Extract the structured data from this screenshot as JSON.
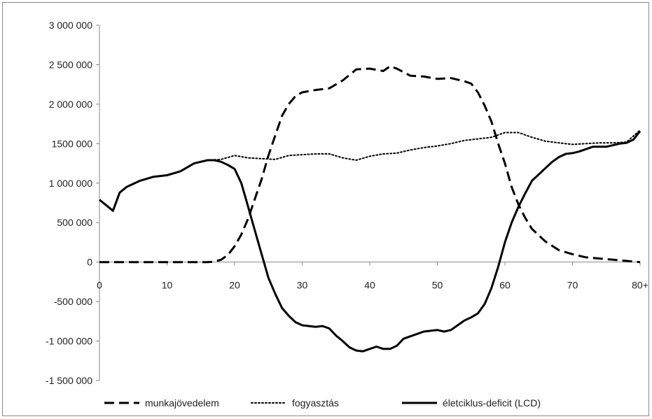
{
  "chart_data": {
    "type": "line",
    "title": "",
    "xlabel": "",
    "ylabel": "",
    "xlim": [
      0,
      80
    ],
    "ylim": [
      -1500000,
      3000000
    ],
    "x_ticks": [
      {
        "value": 0,
        "label": "0"
      },
      {
        "value": 10,
        "label": "10"
      },
      {
        "value": 20,
        "label": "20"
      },
      {
        "value": 30,
        "label": "30"
      },
      {
        "value": 40,
        "label": "40"
      },
      {
        "value": 50,
        "label": "50"
      },
      {
        "value": 60,
        "label": "60"
      },
      {
        "value": 70,
        "label": "70"
      },
      {
        "value": 80,
        "label": "80+"
      }
    ],
    "y_ticks": [
      {
        "value": 3000000,
        "label": "3 000 000"
      },
      {
        "value": 2500000,
        "label": "2 500 000"
      },
      {
        "value": 2000000,
        "label": "2 000 000"
      },
      {
        "value": 1500000,
        "label": "1500 000"
      },
      {
        "value": 1000000,
        "label": "1 000 000"
      },
      {
        "value": 500000,
        "label": "500 000"
      },
      {
        "value": 0,
        "label": "0"
      },
      {
        "value": -500000,
        "label": "-500 000"
      },
      {
        "value": -1000000,
        "label": "-1 000 000"
      },
      {
        "value": -1500000,
        "label": "-1 500 000"
      }
    ],
    "grid": false,
    "legend_position": "bottom",
    "series": [
      {
        "name": "munkajövedelem",
        "dash": "dashed",
        "color": "#000000",
        "x": [
          0,
          2,
          4,
          6,
          8,
          10,
          12,
          14,
          16,
          17,
          18,
          19,
          20,
          21,
          22,
          23,
          24,
          25,
          26,
          27,
          28,
          29,
          30,
          32,
          34,
          36,
          38,
          40,
          42,
          43,
          44,
          46,
          48,
          50,
          52,
          54,
          55,
          56,
          57,
          58,
          59,
          60,
          61,
          62,
          63,
          64,
          66,
          68,
          70,
          72,
          74,
          76,
          78,
          80
        ],
        "y": [
          0,
          0,
          0,
          0,
          0,
          0,
          0,
          0,
          0,
          5000,
          30000,
          90000,
          200000,
          350000,
          550000,
          800000,
          1050000,
          1350000,
          1600000,
          1850000,
          2000000,
          2100000,
          2150000,
          2180000,
          2200000,
          2300000,
          2440000,
          2450000,
          2420000,
          2480000,
          2450000,
          2360000,
          2350000,
          2320000,
          2330000,
          2290000,
          2260000,
          2150000,
          1980000,
          1780000,
          1500000,
          1250000,
          950000,
          730000,
          560000,
          420000,
          260000,
          150000,
          100000,
          60000,
          45000,
          30000,
          15000,
          0
        ]
      },
      {
        "name": "fogyasztás",
        "dash": "dotted",
        "color": "#000000",
        "x": [
          16,
          18,
          20,
          22,
          24,
          26,
          28,
          30,
          32,
          34,
          36,
          38,
          40,
          42,
          44,
          46,
          48,
          50,
          52,
          54,
          56,
          58,
          60,
          62,
          64,
          66,
          68,
          70,
          72,
          74,
          76,
          78,
          80
        ],
        "y": [
          1290000,
          1300000,
          1350000,
          1320000,
          1310000,
          1300000,
          1350000,
          1360000,
          1370000,
          1370000,
          1320000,
          1290000,
          1340000,
          1370000,
          1380000,
          1420000,
          1450000,
          1470000,
          1500000,
          1540000,
          1560000,
          1580000,
          1640000,
          1640000,
          1580000,
          1530000,
          1510000,
          1490000,
          1500000,
          1510000,
          1510000,
          1520000,
          1670000
        ]
      },
      {
        "name": "életciklus-deficit (LCD)",
        "dash": "solid",
        "color": "#000000",
        "x": [
          0,
          1,
          2,
          3,
          4,
          6,
          8,
          10,
          12,
          14,
          16,
          17,
          18,
          19,
          20,
          21,
          22,
          23,
          24,
          25,
          26,
          27,
          28,
          29,
          30,
          32,
          33,
          34,
          35,
          36,
          37,
          38,
          39,
          40,
          41,
          42,
          43,
          44,
          45,
          46,
          48,
          50,
          51,
          52,
          53,
          54,
          55,
          56,
          57,
          58,
          59,
          60,
          61,
          62,
          63,
          64,
          66,
          67,
          68,
          69,
          70,
          71,
          72,
          73,
          74,
          75,
          76,
          77,
          78,
          79,
          80
        ],
        "y": [
          790000,
          720000,
          650000,
          880000,
          950000,
          1030000,
          1080000,
          1100000,
          1150000,
          1250000,
          1290000,
          1290000,
          1270000,
          1230000,
          1180000,
          1000000,
          700000,
          400000,
          100000,
          -200000,
          -400000,
          -580000,
          -680000,
          -760000,
          -800000,
          -820000,
          -810000,
          -840000,
          -930000,
          -1000000,
          -1080000,
          -1120000,
          -1130000,
          -1100000,
          -1070000,
          -1100000,
          -1100000,
          -1060000,
          -970000,
          -940000,
          -880000,
          -860000,
          -880000,
          -860000,
          -800000,
          -740000,
          -700000,
          -650000,
          -530000,
          -330000,
          -60000,
          250000,
          500000,
          700000,
          870000,
          1030000,
          1190000,
          1270000,
          1330000,
          1370000,
          1380000,
          1400000,
          1430000,
          1460000,
          1460000,
          1460000,
          1480000,
          1500000,
          1510000,
          1550000,
          1660000
        ]
      }
    ]
  }
}
